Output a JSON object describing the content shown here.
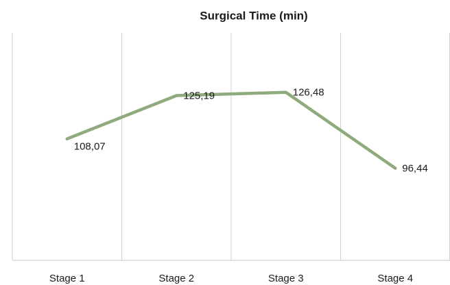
{
  "chart_data": {
    "type": "line",
    "title": "Surgical Time (min)",
    "categories": [
      "Stage 1",
      "Stage 2",
      "Stage 3",
      "Stage 4"
    ],
    "series": [
      {
        "name": "Surgical Time (min)",
        "color": "#8faa7c",
        "values": [
          108.07,
          125.19,
          126.48,
          96.44
        ],
        "value_labels": [
          "108,07",
          "125,19",
          "126,48",
          "96,44"
        ]
      }
    ],
    "ylim": [
      60,
      150
    ]
  }
}
